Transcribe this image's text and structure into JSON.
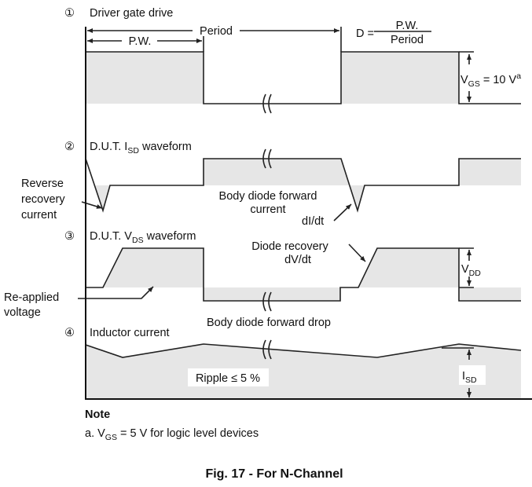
{
  "labels": {
    "step1": "①",
    "gate_title": "Driver gate drive",
    "period": "Period",
    "pw": "P.W.",
    "duty_d": "D =",
    "duty_num": "P.W.",
    "duty_den": "Period",
    "vgs_v": "V",
    "vgs_sub": "GS",
    "vgs_val": " = 10 V",
    "vgs_sup": "a",
    "step2": "②",
    "isd_pre": "D.U.T. I",
    "isd_sub": "SD",
    "isd_post": " waveform",
    "rrc_1": "Reverse",
    "rrc_2": "recovery",
    "rrc_3": "current",
    "bdfc_1": "Body diode forward",
    "bdfc_2": "current",
    "didt": "dI/dt",
    "step3": "③",
    "vds_pre": "D.U.T. V",
    "vds_sub": "DS",
    "vds_post": " waveform",
    "dr_1": "Diode recovery",
    "dr_2": "dV/dt",
    "vdd_v": "V",
    "vdd_sub": "DD",
    "ra_1": "Re-applied",
    "ra_2": "voltage",
    "bdfd": "Body diode forward drop",
    "step4": "④",
    "ind": "Inductor current",
    "ripple": "Ripple ≤ 5 %",
    "isd2_i": "I",
    "isd2_sub": "SD"
  },
  "note": {
    "title": "Note",
    "a_pre": "a. V",
    "a_sub": "GS",
    "a_post": " = 5 V for logic level devices"
  },
  "caption": "Fig. 17 - For N-Channel",
  "colors": {
    "fill": "#e6e6e6",
    "line": "#222222"
  }
}
